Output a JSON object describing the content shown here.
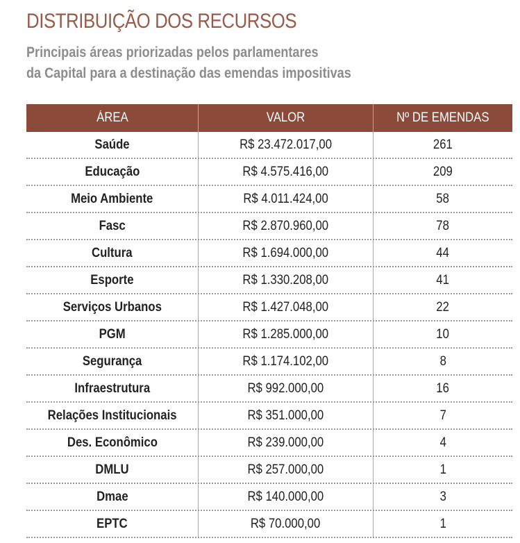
{
  "header": {
    "title": "DISTRIBUIÇÃO DOS RECURSOS",
    "subtitle": [
      "Principais áreas priorizadas pelos parlamentares",
      "da Capital para a destinação das emendas impositivas"
    ]
  },
  "table": {
    "columns": [
      "ÁREA",
      "VALOR",
      "Nº DE EMENDAS"
    ],
    "rows": [
      [
        "Saúde",
        "R$ 23.472.017,00",
        "261"
      ],
      [
        "Educação",
        "R$ 4.575.416,00",
        "209"
      ],
      [
        "Meio Ambiente",
        "R$ 4.011.424,00",
        "58"
      ],
      [
        "Fasc",
        "R$ 2.870.960,00",
        "78"
      ],
      [
        "Cultura",
        "R$ 1.694.000,00",
        "44"
      ],
      [
        "Esporte",
        "R$ 1.330.208,00",
        "41"
      ],
      [
        "Serviços Urbanos",
        "R$ 1.427.048,00",
        "22"
      ],
      [
        "PGM",
        "R$ 1.285.000,00",
        "10"
      ],
      [
        "Segurança",
        "R$ 1.174.102,00",
        "8"
      ],
      [
        "Infraestrutura",
        "R$ 992.000,00",
        "16"
      ],
      [
        "Relações Institucionais",
        "R$ 351.000,00",
        "7"
      ],
      [
        "Des. Econômico",
        "R$ 239.000,00",
        "4"
      ],
      [
        "DMLU",
        "R$ 257.000,00",
        "1"
      ],
      [
        "Dmae",
        "R$ 140.000,00",
        "3"
      ],
      [
        "EPTC",
        "R$ 70.000,00",
        "1"
      ]
    ]
  }
}
